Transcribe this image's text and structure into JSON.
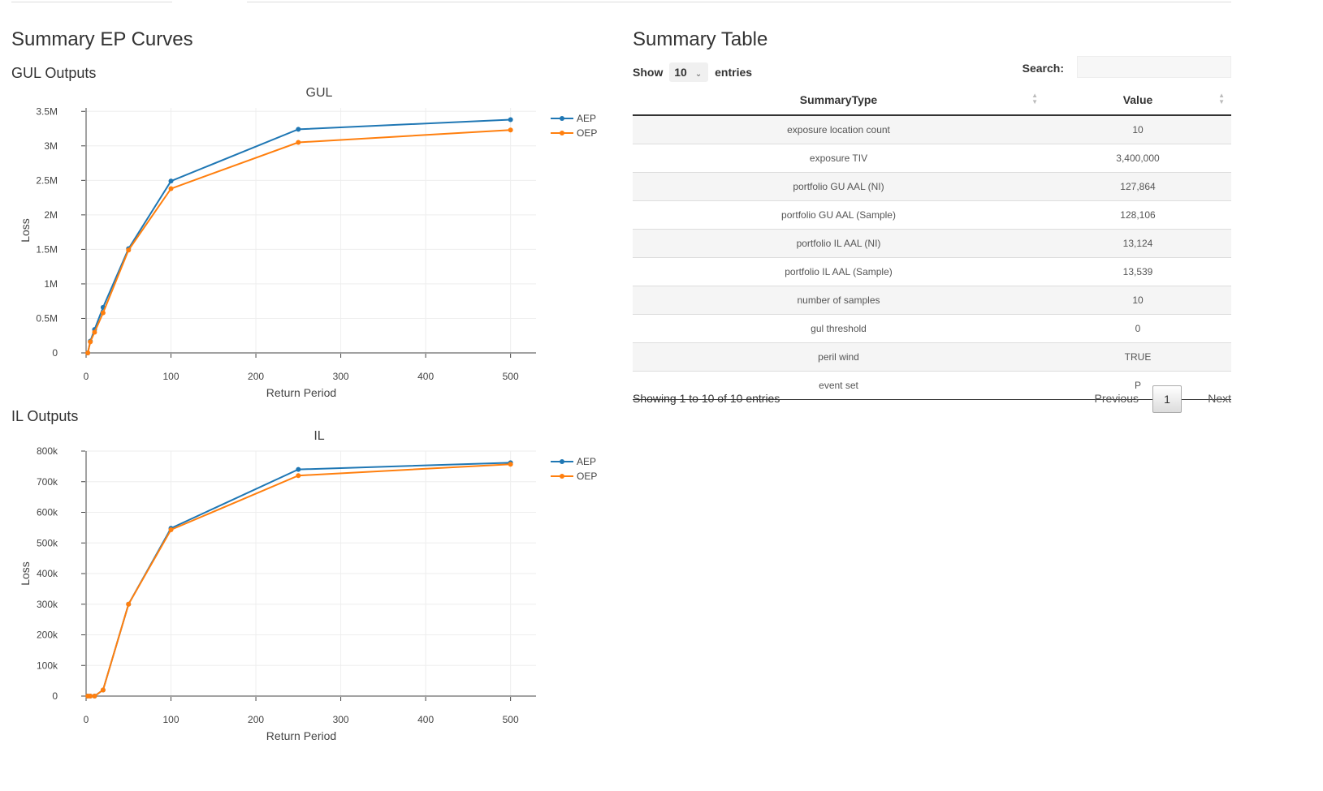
{
  "page": {
    "ep_title": "Summary EP Curves",
    "gul_heading": "GUL Outputs",
    "il_heading": "IL Outputs",
    "table_title": "Summary Table"
  },
  "table": {
    "show_label": "Show",
    "page_length": "10",
    "entries_label": "entries",
    "search_label": "Search:",
    "search_value": "",
    "columns": [
      "SummaryType",
      "Value"
    ],
    "rows": [
      [
        "exposure location count",
        "10"
      ],
      [
        "exposure TIV",
        "3,400,000"
      ],
      [
        "portfolio GU AAL (NI)",
        "127,864"
      ],
      [
        "portfolio GU AAL (Sample)",
        "128,106"
      ],
      [
        "portfolio IL AAL (NI)",
        "13,124"
      ],
      [
        "portfolio IL AAL (Sample)",
        "13,539"
      ],
      [
        "number of samples",
        "10"
      ],
      [
        "gul threshold",
        "0"
      ],
      [
        "peril wind",
        "TRUE"
      ],
      [
        "event set",
        "P"
      ]
    ],
    "info": "Showing 1 to 10 of 10 entries",
    "previous": "Previous",
    "current_page": "1",
    "next": "Next"
  },
  "colors": {
    "aep": "#1f77b4",
    "oep": "#ff7f0e"
  },
  "chart_data": [
    {
      "type": "line",
      "title": "GUL",
      "xlabel": "Return Period",
      "ylabel": "Loss",
      "xlim": [
        0,
        530
      ],
      "ylim": [
        0,
        3550000
      ],
      "xticks": [
        0,
        100,
        200,
        300,
        400,
        500
      ],
      "xtick_labels": [
        "0",
        "100",
        "200",
        "300",
        "400",
        "500"
      ],
      "yticks": [
        0,
        500000,
        1000000,
        1500000,
        2000000,
        2500000,
        3000000,
        3500000
      ],
      "ytick_labels": [
        "0",
        "0.5M",
        "1M",
        "1.5M",
        "2M",
        "2.5M",
        "3M",
        "3.5M"
      ],
      "grid": true,
      "legend": "top-right",
      "series": [
        {
          "name": "AEP",
          "x": [
            2,
            5,
            10,
            20,
            50,
            100,
            250,
            500
          ],
          "y": [
            0,
            170000,
            340000,
            660000,
            1510000,
            2490000,
            3240000,
            3380000
          ]
        },
        {
          "name": "OEP",
          "x": [
            2,
            5,
            10,
            20,
            50,
            100,
            250,
            500
          ],
          "y": [
            0,
            160000,
            300000,
            580000,
            1490000,
            2380000,
            3050000,
            3230000
          ]
        }
      ]
    },
    {
      "type": "line",
      "title": "IL",
      "xlabel": "Return Period",
      "ylabel": "Loss",
      "xlim": [
        0,
        530
      ],
      "ylim": [
        0,
        800000
      ],
      "xticks": [
        0,
        100,
        200,
        300,
        400,
        500
      ],
      "xtick_labels": [
        "0",
        "100",
        "200",
        "300",
        "400",
        "500"
      ],
      "yticks": [
        0,
        100000,
        200000,
        300000,
        400000,
        500000,
        600000,
        700000,
        800000
      ],
      "ytick_labels": [
        "0",
        "100k",
        "200k",
        "300k",
        "400k",
        "500k",
        "600k",
        "700k",
        "800k"
      ],
      "grid": true,
      "legend": "top-right",
      "series": [
        {
          "name": "AEP",
          "x": [
            2,
            5,
            10,
            20,
            50,
            100,
            250,
            500
          ],
          "y": [
            0,
            0,
            0,
            20000,
            300000,
            548000,
            740000,
            762000
          ]
        },
        {
          "name": "OEP",
          "x": [
            2,
            5,
            10,
            20,
            50,
            100,
            250,
            500
          ],
          "y": [
            0,
            0,
            0,
            20000,
            300000,
            543000,
            720000,
            757000
          ]
        }
      ]
    }
  ]
}
